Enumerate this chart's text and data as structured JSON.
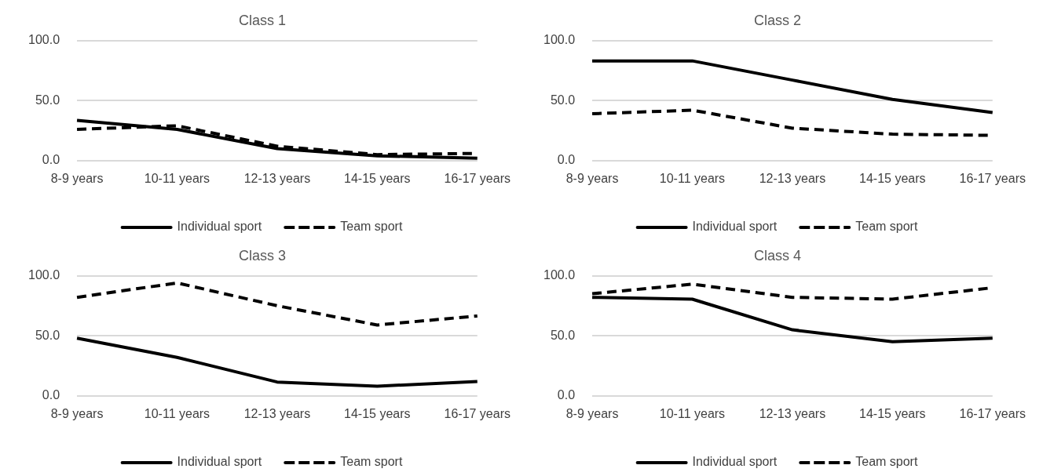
{
  "chart_data": [
    {
      "type": "line",
      "title": "Class 1",
      "categories": [
        "8-9 years",
        "10-11 years",
        "12-13 years",
        "14-15 years",
        "16-17 years"
      ],
      "ylim": [
        0,
        100
      ],
      "yticks": [
        {
          "value": 0,
          "label": "0.0"
        },
        {
          "value": 50,
          "label": "50.0"
        },
        {
          "value": 100,
          "label": "100.0"
        }
      ],
      "grid": "y",
      "legend": "bottom",
      "marker": "none",
      "series": [
        {
          "name": "Individual sport",
          "color": "#000000",
          "line_style": "solid",
          "values": [
            33.5,
            26,
            10,
            4,
            2
          ]
        },
        {
          "name": "Team sport",
          "color": "#000000",
          "line_style": "dashed",
          "values": [
            26,
            29,
            12,
            5,
            6
          ]
        }
      ]
    },
    {
      "type": "line",
      "title": "Class 2",
      "categories": [
        "8-9 years",
        "10-11 years",
        "12-13 years",
        "14-15 years",
        "16-17 years"
      ],
      "ylim": [
        0,
        100
      ],
      "yticks": [
        {
          "value": 0,
          "label": "0.0"
        },
        {
          "value": 50,
          "label": "50.0"
        },
        {
          "value": 100,
          "label": "100.0"
        }
      ],
      "grid": "y",
      "legend": "bottom",
      "marker": "none",
      "series": [
        {
          "name": "Individual sport",
          "color": "#000000",
          "line_style": "solid",
          "values": [
            83,
            83,
            67,
            51,
            40
          ]
        },
        {
          "name": "Team sport",
          "color": "#000000",
          "line_style": "dashed",
          "values": [
            39,
            42,
            27,
            22,
            21
          ]
        }
      ]
    },
    {
      "type": "line",
      "title": "Class 3",
      "categories": [
        "8-9 years",
        "10-11 years",
        "12-13 years",
        "14-15 years",
        "16-17 years"
      ],
      "ylim": [
        0,
        100
      ],
      "yticks": [
        {
          "value": 0,
          "label": "0.0"
        },
        {
          "value": 50,
          "label": "50.0"
        },
        {
          "value": 100,
          "label": "100.0"
        }
      ],
      "grid": "y",
      "legend": "bottom",
      "marker": "none",
      "series": [
        {
          "name": "Individual sport",
          "color": "#000000",
          "line_style": "solid",
          "values": [
            48,
            32,
            11.5,
            8,
            12
          ]
        },
        {
          "name": "Team sport",
          "color": "#000000",
          "line_style": "dashed",
          "values": [
            82,
            94,
            75,
            59,
            66.5
          ]
        }
      ]
    },
    {
      "type": "line",
      "title": "Class 4",
      "categories": [
        "8-9 years",
        "10-11 years",
        "12-13 years",
        "14-15 years",
        "16-17 years"
      ],
      "ylim": [
        0,
        100
      ],
      "yticks": [
        {
          "value": 0,
          "label": "0.0"
        },
        {
          "value": 50,
          "label": "50.0"
        },
        {
          "value": 100,
          "label": "100.0"
        }
      ],
      "grid": "y",
      "legend": "bottom",
      "marker": "none",
      "series": [
        {
          "name": "Individual sport",
          "color": "#000000",
          "line_style": "solid",
          "values": [
            82,
            80.5,
            55,
            45,
            48
          ]
        },
        {
          "name": "Team sport",
          "color": "#000000",
          "line_style": "dashed",
          "values": [
            85,
            93,
            82,
            80.5,
            90
          ]
        }
      ]
    }
  ]
}
